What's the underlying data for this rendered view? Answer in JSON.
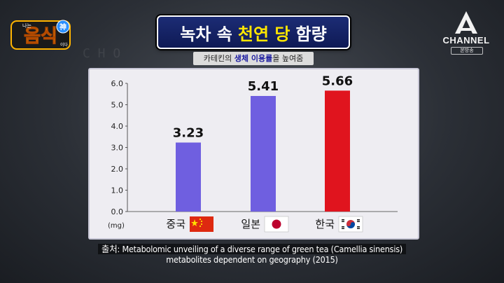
{
  "title": {
    "parts": [
      "녹차 속",
      "천연 당",
      "함량"
    ],
    "highlight_index": 1,
    "highlight_color": "#ffe600"
  },
  "subtitle": {
    "before": "카테킨의 ",
    "highlight": "생체 이용률",
    "after": "을 높여줌"
  },
  "logo": {
    "text": "음식",
    "small_top": "나는",
    "small_side": "이다",
    "badge": "神"
  },
  "channel": {
    "brand": "CHANNEL",
    "sub": "본방송"
  },
  "chart_data": {
    "type": "bar",
    "categories": [
      "중국",
      "일본",
      "한국"
    ],
    "flags": [
      "china",
      "japan",
      "korea"
    ],
    "values": [
      3.23,
      5.41,
      5.66
    ],
    "value_labels": [
      "3.23",
      "5.41",
      "5.66"
    ],
    "colors": [
      "#6f5fe0",
      "#6f5fe0",
      "#e0141e"
    ],
    "ylabel": "(mg)",
    "ylim": [
      0,
      6
    ],
    "yticks": [
      "0.0",
      "1.0",
      "2.0",
      "3.0",
      "4.0",
      "5.0",
      "6.0"
    ],
    "grid": false,
    "legend": "none"
  },
  "source": {
    "line1": "출처: Metabolomic unveiling of a diverse range of green tea (Camellia sinensis)",
    "line2": "metabolites dependent on geography (2015)"
  }
}
